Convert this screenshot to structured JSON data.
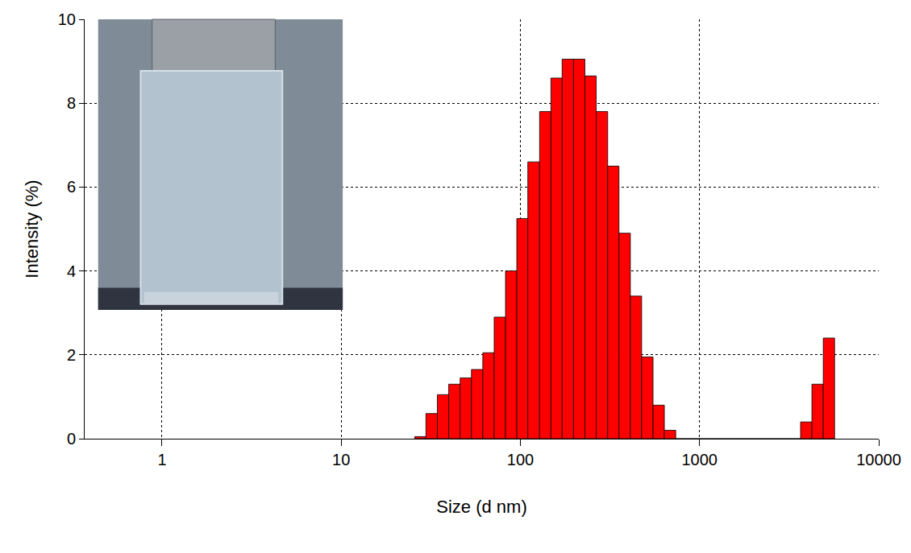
{
  "chart_data": {
    "type": "histogram",
    "xlabel": "Size (d nm)",
    "ylabel": "Intensity (%)",
    "bins": [
      25.7,
      29.7,
      34.4,
      39.8,
      46.1,
      53.3,
      61.7,
      71.4,
      82.6,
      95.5,
      110,
      128,
      148,
      171,
      198,
      229,
      265,
      307,
      355,
      411,
      475,
      550,
      636,
      736,
      851,
      985,
      1140,
      1319,
      1526,
      1766,
      2043,
      2364,
      2735,
      3164,
      3661,
      4236,
      4901,
      5670
    ],
    "values": [
      0.05,
      0.6,
      1.05,
      1.3,
      1.45,
      1.65,
      2.05,
      2.9,
      4.0,
      5.25,
      6.6,
      7.8,
      8.6,
      9.05,
      9.05,
      8.65,
      7.8,
      6.5,
      4.9,
      3.4,
      1.95,
      0.8,
      0.2,
      0,
      0,
      0,
      0,
      0,
      0,
      0,
      0,
      0,
      0,
      0,
      0.4,
      1.3,
      2.4
    ],
    "color": "#ff0000",
    "log": "x",
    "grid": true,
    "xlim": [
      0.37,
      10000
    ],
    "xticks": [
      1,
      10,
      100,
      1000,
      10000
    ],
    "ylim": [
      0,
      10
    ],
    "yticks": [
      0,
      2,
      4,
      6,
      8,
      10
    ]
  }
}
